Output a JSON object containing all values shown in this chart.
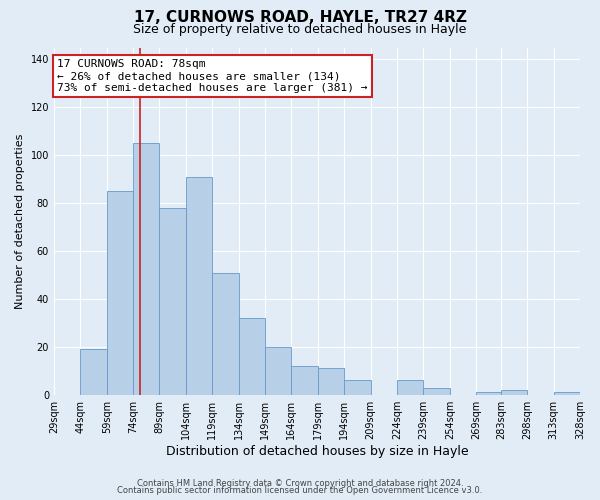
{
  "title": "17, CURNOWS ROAD, HAYLE, TR27 4RZ",
  "subtitle": "Size of property relative to detached houses in Hayle",
  "xlabel": "Distribution of detached houses by size in Hayle",
  "ylabel": "Number of detached properties",
  "bin_edges": [
    29,
    44,
    59,
    74,
    89,
    104,
    119,
    134,
    149,
    164,
    179,
    194,
    209,
    224,
    239,
    254,
    269,
    283,
    298,
    313,
    328
  ],
  "bin_labels": [
    "29sqm",
    "44sqm",
    "59sqm",
    "74sqm",
    "89sqm",
    "104sqm",
    "119sqm",
    "134sqm",
    "149sqm",
    "164sqm",
    "179sqm",
    "194sqm",
    "209sqm",
    "224sqm",
    "239sqm",
    "254sqm",
    "269sqm",
    "283sqm",
    "298sqm",
    "313sqm",
    "328sqm"
  ],
  "bar_heights": [
    0,
    19,
    85,
    105,
    78,
    91,
    51,
    32,
    20,
    12,
    11,
    6,
    0,
    6,
    3,
    0,
    1,
    2,
    0,
    1,
    0
  ],
  "bar_color": "#b8cfe8",
  "bar_edge_color": "#6699cc",
  "background_color": "#e2ecf6",
  "plot_bg_color": "#e2ecf6",
  "vline_x": 78,
  "vline_color": "#cc2222",
  "ylim": [
    0,
    145
  ],
  "yticks": [
    0,
    20,
    40,
    60,
    80,
    100,
    120,
    140
  ],
  "annotation_text": "17 CURNOWS ROAD: 78sqm\n← 26% of detached houses are smaller (134)\n73% of semi-detached houses are larger (381) →",
  "annotation_box_color": "#cc2222",
  "footer_line1": "Contains HM Land Registry data © Crown copyright and database right 2024.",
  "footer_line2": "Contains public sector information licensed under the Open Government Licence v3.0.",
  "title_fontsize": 11,
  "subtitle_fontsize": 9,
  "xlabel_fontsize": 9,
  "ylabel_fontsize": 8,
  "tick_fontsize": 7,
  "annotation_fontsize": 8,
  "footer_fontsize": 6
}
